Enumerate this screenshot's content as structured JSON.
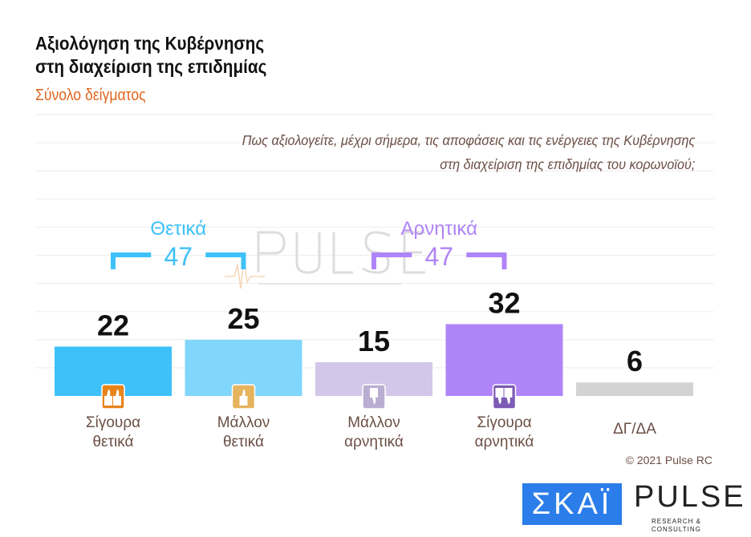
{
  "chart_data": {
    "type": "bar",
    "title": "Αξιολόγηση της Κυβέρνησης στη διαχείριση της επιδημίας",
    "title_lines": [
      "Αξιολόγηση της Κυβέρνησης",
      "στη διαχείριση της επιδημίας"
    ],
    "subtitle": "Σύνολο δείγματος",
    "question_lines": [
      "Πως αξιολογείτε, μέχρι σήμερα, τις αποφάσεις και τις ενέργειες της Κυβέρνησης",
      "στη διαχείριση της επιδημίας του κορωνοϊού;"
    ],
    "categories": [
      [
        "Σίγουρα",
        "θετικά"
      ],
      [
        "Μάλλον",
        "θετικά"
      ],
      [
        "Μάλλον",
        "αρνητικά"
      ],
      [
        "Σίγουρα",
        "αρνητικά"
      ],
      [
        "ΔΓ/ΔΑ"
      ]
    ],
    "values": [
      22,
      25,
      15,
      32,
      6
    ],
    "colors": [
      "#3ec1f9",
      "#80d6fb",
      "#d2c7e8",
      "#b084f9",
      "#d3d3d3"
    ],
    "icons": [
      "two-thumbs-up-icon",
      "thumb-up-icon",
      "thumb-down-icon",
      "two-thumbs-down-icon",
      null
    ],
    "icon_colors": [
      "#e8841a",
      "#e6b45e",
      "#b9aed1",
      "#7d5bb4"
    ],
    "groups": [
      {
        "label": "Θετικά",
        "total": "47",
        "color": "#3ec1f9"
      },
      {
        "label": "Αρνητικά",
        "total": "47",
        "color": "#b084f9"
      }
    ],
    "grid": true
  },
  "footer": {
    "copyright": "© 2021 Pulse RC",
    "skai_logo": "ΣΚΑΪ",
    "pulse_logo": "PULSE",
    "pulse_tagline": "RESEARCH & CONSULTING"
  }
}
